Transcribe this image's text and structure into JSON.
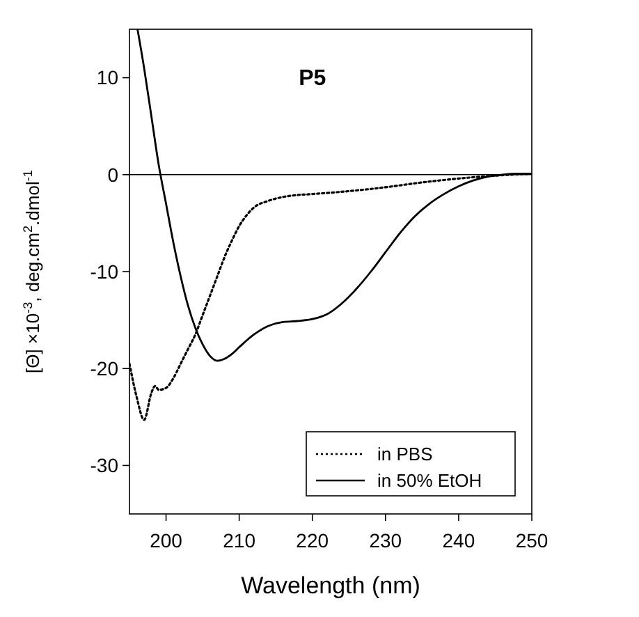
{
  "chart_data": {
    "type": "line",
    "title": "P5",
    "xlabel": "Wavelength (nm)",
    "ylabel": "[Θ]  ×10$^{-3}$, deg.cm$^{2}$.dmol$^{-1}$",
    "xlim": [
      195,
      250
    ],
    "xticks": [
      200,
      210,
      220,
      230,
      240,
      250
    ],
    "ylim": [
      -35,
      15
    ],
    "yticks": [
      -30,
      -20,
      -10,
      0,
      10
    ],
    "grid": false,
    "legend": "bottom right",
    "ref_lines": [
      {
        "axis": "y",
        "value": 0,
        "color": "#000000"
      }
    ],
    "series": [
      {
        "name": "in PBS",
        "color": "#000000",
        "line_style": "dotted",
        "x": [
          195,
          196,
          197,
          198,
          198.5,
          199,
          200,
          201,
          202,
          203,
          204,
          205,
          206,
          207,
          208,
          209,
          210,
          211,
          212,
          214,
          216,
          218,
          220,
          225,
          230,
          235,
          240,
          245,
          250
        ],
        "values": [
          -19.5,
          -23,
          -25.3,
          -22.5,
          -21.8,
          -22.2,
          -22,
          -21,
          -19.5,
          -18,
          -16.5,
          -14.5,
          -12.5,
          -10.5,
          -8.5,
          -6.8,
          -5.3,
          -4.2,
          -3.4,
          -2.7,
          -2.3,
          -2.1,
          -2.0,
          -1.7,
          -1.3,
          -0.8,
          -0.4,
          -0.1,
          0.1
        ]
      },
      {
        "name": "in 50% EtOH",
        "color": "#000000",
        "line_style": "solid",
        "x": [
          196.1,
          197,
          198,
          199,
          200,
          201,
          202,
          203,
          204,
          205,
          206,
          207,
          208,
          209,
          210,
          212,
          214,
          216,
          218,
          220,
          222,
          224,
          226,
          228,
          230,
          232,
          234,
          236,
          238,
          240,
          242,
          244,
          246,
          248,
          250
        ],
        "values": [
          15,
          11,
          6,
          1,
          -3,
          -7,
          -10.5,
          -13.5,
          -15.8,
          -17.5,
          -18.7,
          -19.2,
          -19.0,
          -18.5,
          -17.8,
          -16.5,
          -15.6,
          -15.2,
          -15.1,
          -14.9,
          -14.4,
          -13.3,
          -11.8,
          -10,
          -8,
          -6,
          -4.3,
          -3,
          -2,
          -1.2,
          -0.6,
          -0.2,
          0,
          0.1,
          0.1
        ]
      }
    ]
  }
}
